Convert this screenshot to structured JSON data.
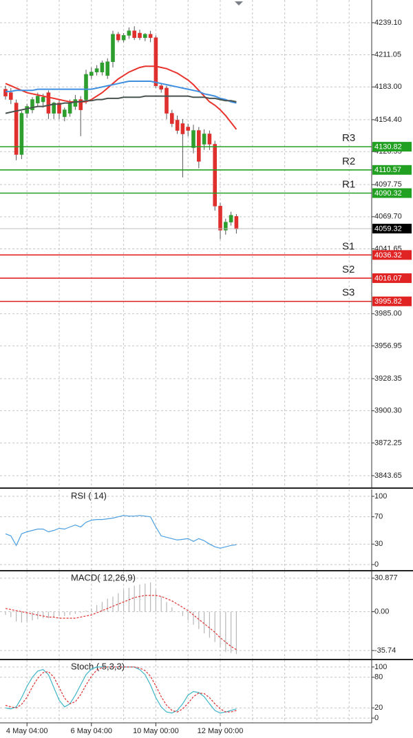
{
  "chart_data": [
    {
      "type": "candlestick",
      "categories": [
        null,
        null,
        null,
        null,
        "4 May 04:00",
        null,
        null,
        null,
        null,
        null,
        null,
        null,
        null,
        null,
        null,
        null,
        "6 May 04:00",
        null,
        null,
        null,
        null,
        null,
        null,
        null,
        null,
        null,
        null,
        null,
        "10 May 00:00",
        null,
        null,
        null,
        null,
        null,
        null,
        null,
        null,
        null,
        null,
        null,
        "12 May 00:00",
        null,
        null,
        null
      ],
      "open": [
        4181,
        4178,
        4169,
        4124,
        4160,
        4163,
        4169,
        4170,
        4178,
        4160,
        4169,
        4157,
        4160,
        4166,
        4172,
        4172,
        4193,
        4196,
        4196,
        4193,
        4205,
        4229,
        4224,
        4228,
        4232,
        4230,
        4226,
        4229,
        4226,
        4184,
        4182,
        4160,
        4154,
        4151,
        4148,
        4130,
        4145,
        4133,
        4142,
        4133,
        4079,
        4058,
        4065,
        4070
      ],
      "high": [
        4184,
        4182,
        4172,
        4162,
        4168,
        4174,
        4178,
        4177,
        4180,
        4170,
        4172,
        4165,
        4172,
        4176,
        4175,
        4198,
        4200,
        4202,
        4206,
        4208,
        4232,
        4231,
        4230,
        4235,
        4236,
        4233,
        4230,
        4232,
        4228,
        4186,
        4184,
        4163,
        4158,
        4155,
        4151,
        4150,
        4148,
        4146,
        4145,
        4136,
        4082,
        4068,
        4074,
        4072
      ],
      "low": [
        4172,
        4168,
        4119,
        4120,
        4156,
        4160,
        4166,
        4165,
        4155,
        4155,
        4155,
        4153,
        4157,
        4163,
        4140,
        4168,
        4190,
        4193,
        4193,
        4190,
        4200,
        4222,
        4222,
        4225,
        4224,
        4224,
        4223,
        4222,
        4182,
        4178,
        4155,
        4148,
        4142,
        4104,
        4140,
        4125,
        4112,
        4128,
        4128,
        4075,
        4050,
        4054,
        4062,
        4055
      ],
      "close": [
        4175,
        4172,
        4124,
        4160,
        4166,
        4172,
        4175,
        4174,
        4160,
        4169,
        4160,
        4163,
        4169,
        4172,
        4163,
        4194,
        4196,
        4199,
        4204,
        4205,
        4229,
        4224,
        4228,
        4232,
        4226,
        4226,
        4229,
        4226,
        4184,
        4181,
        4160,
        4151,
        4145,
        4142,
        4145,
        4145,
        4118,
        4142,
        4133,
        4079,
        4058,
        4065,
        4071,
        4059
      ],
      "up_color": "#2e9e2e",
      "down_color": "#e0302e",
      "wick_color": "#555555",
      "lines": [
        {
          "color": "#e8322b",
          "values": [
            4186,
            4184,
            4182,
            4180,
            4178,
            4177,
            4176,
            4175,
            4174,
            4173,
            4172,
            4171,
            4170,
            4170,
            4170,
            4170,
            4172,
            4175,
            4178,
            4182,
            4186,
            4190,
            4193,
            4196,
            4198,
            4200,
            4201,
            4201,
            4201,
            4200,
            4199,
            4197,
            4195,
            4192,
            4189,
            4185,
            4180,
            4175,
            4170,
            4167,
            4163,
            4158,
            4152,
            4146
          ]
        },
        {
          "color": "#3f8fe0",
          "values": [
            4179,
            4179,
            4180,
            4180,
            4180,
            4180,
            4181,
            4181,
            4181,
            4181,
            4181,
            4181,
            4181,
            4181,
            4181,
            4181,
            4181,
            4182,
            4183,
            4184,
            4185,
            4186,
            4187,
            4188,
            4188,
            4188,
            4188,
            4188,
            4187,
            4186,
            4185,
            4184,
            4183,
            4182,
            4181,
            4180,
            4179,
            4177,
            4176,
            4175,
            4173,
            4172,
            4170,
            4169
          ]
        },
        {
          "color": "#47524e",
          "values": [
            4160,
            4161,
            4162,
            4163,
            4164,
            4165,
            4166,
            4166,
            4167,
            4168,
            4168,
            4169,
            4169,
            4170,
            4170,
            4171,
            4171,
            4172,
            4172,
            4173,
            4173,
            4173,
            4174,
            4174,
            4174,
            4174,
            4175,
            4175,
            4175,
            4175,
            4175,
            4175,
            4175,
            4175,
            4175,
            4174,
            4174,
            4174,
            4173,
            4173,
            4172,
            4171,
            4171,
            4170
          ]
        }
      ],
      "ylim": [
        3833.4,
        4258.9
      ],
      "yticks": [
        {
          "value": 4239.1,
          "label": "4239.10"
        },
        {
          "value": 4211.05,
          "label": "4211.05"
        },
        {
          "value": 4183,
          "label": "4183.00"
        },
        {
          "value": 4154.4,
          "label": "4154.40"
        },
        {
          "value": 4126.55,
          "label": "4126.55"
        },
        {
          "value": 4097.75,
          "label": "4097.75"
        },
        {
          "value": 4069.7,
          "label": "4069.70"
        },
        {
          "value": 4041.65,
          "label": "4041.65"
        },
        {
          "value": 3985,
          "label": "3985.00"
        },
        {
          "value": 3956.95,
          "label": "3956.95"
        },
        {
          "value": 3928.35,
          "label": "3928.35"
        },
        {
          "value": 3900.3,
          "label": "3900.30"
        },
        {
          "value": 3872.25,
          "label": "3872.25"
        },
        {
          "value": 3843.65,
          "label": "3843.65"
        }
      ],
      "grid": true,
      "levels": [
        {
          "name": "R3",
          "value": 4130.82,
          "color": "#22a022"
        },
        {
          "name": "R2",
          "value": 4110.57,
          "color": "#22a022"
        },
        {
          "name": "R1",
          "value": 4090.32,
          "color": "#22a022"
        },
        {
          "name": "S1",
          "value": 4036.32,
          "color": "#e02424"
        },
        {
          "name": "S2",
          "value": 4016.07,
          "color": "#e02424"
        },
        {
          "name": "S3",
          "value": 3995.82,
          "color": "#e02424"
        }
      ],
      "last_price": 4059.32,
      "last_price_color": "#000000"
    },
    {
      "type": "line",
      "title": "RSI ( 14)",
      "series": [
        {
          "color": "#4a9fe2",
          "values": [
            45,
            42,
            28,
            45,
            48,
            50,
            52,
            52,
            48,
            50,
            53,
            52,
            55,
            58,
            55,
            62,
            65,
            66,
            66,
            67,
            68,
            70,
            72,
            71,
            71,
            72,
            71,
            70,
            55,
            42,
            40,
            38,
            36,
            37,
            38,
            34,
            38,
            35,
            30,
            26,
            24,
            26,
            28,
            29
          ]
        }
      ],
      "ylim": [
        -8,
        110
      ],
      "yticks": [
        100,
        70,
        30,
        0
      ],
      "grid": true
    },
    {
      "type": "macd",
      "title": "MACD( 12,26,9)",
      "histogram": [
        -3,
        -5,
        -9,
        -10,
        -9,
        -8,
        -7,
        -6,
        -6,
        -5,
        -4,
        -4,
        -3,
        -2,
        -1,
        1,
        3,
        6,
        9,
        12,
        14,
        17,
        20,
        22,
        24,
        25,
        26,
        27,
        20,
        14,
        9,
        4,
        0,
        -4,
        -8,
        -12,
        -16,
        -20,
        -24,
        -28,
        -33,
        -37,
        -38,
        -39
      ],
      "histogram_color": "#b8b8b8",
      "signal": [
        3,
        2,
        1,
        0,
        -1,
        -2,
        -3,
        -4,
        -5,
        -5,
        -6,
        -6,
        -6,
        -6,
        -5,
        -4,
        -3,
        -1,
        1,
        3,
        5,
        7,
        9,
        11,
        13,
        14,
        15,
        15,
        15,
        14,
        12,
        10,
        7,
        4,
        1,
        -3,
        -7,
        -11,
        -15,
        -19,
        -24,
        -28,
        -32,
        -35
      ],
      "signal_color": "#e03030",
      "ylim": [
        -43.4,
        37.1
      ],
      "yticks": [
        30.877,
        {
          "value": 0,
          "label": "0.00"
        },
        -35.74
      ],
      "grid": true
    },
    {
      "type": "line",
      "title": "Stoch ( 5,3,3)",
      "series": [
        {
          "color": "#3db5c8",
          "values": [
            20,
            18,
            22,
            40,
            62,
            80,
            92,
            95,
            85,
            60,
            35,
            22,
            28,
            45,
            65,
            85,
            96,
            100,
            100,
            100,
            100,
            100,
            100,
            100,
            100,
            95,
            85,
            65,
            40,
            22,
            12,
            10,
            15,
            28,
            45,
            52,
            50,
            42,
            28,
            15,
            10,
            12,
            15,
            18
          ]
        },
        {
          "color": "#e03030",
          "dashed": true,
          "values": [
            25,
            22,
            20,
            27,
            41,
            61,
            78,
            89,
            91,
            80,
            60,
            39,
            28,
            32,
            46,
            65,
            82,
            94,
            99,
            100,
            100,
            100,
            100,
            100,
            100,
            98,
            93,
            82,
            63,
            42,
            25,
            15,
            12,
            18,
            29,
            42,
            49,
            48,
            40,
            28,
            18,
            12,
            12,
            15
          ]
        }
      ],
      "ylim": [
        -9.3,
        113.3
      ],
      "yticks": [
        100,
        80,
        20,
        0
      ],
      "grid": true
    }
  ]
}
